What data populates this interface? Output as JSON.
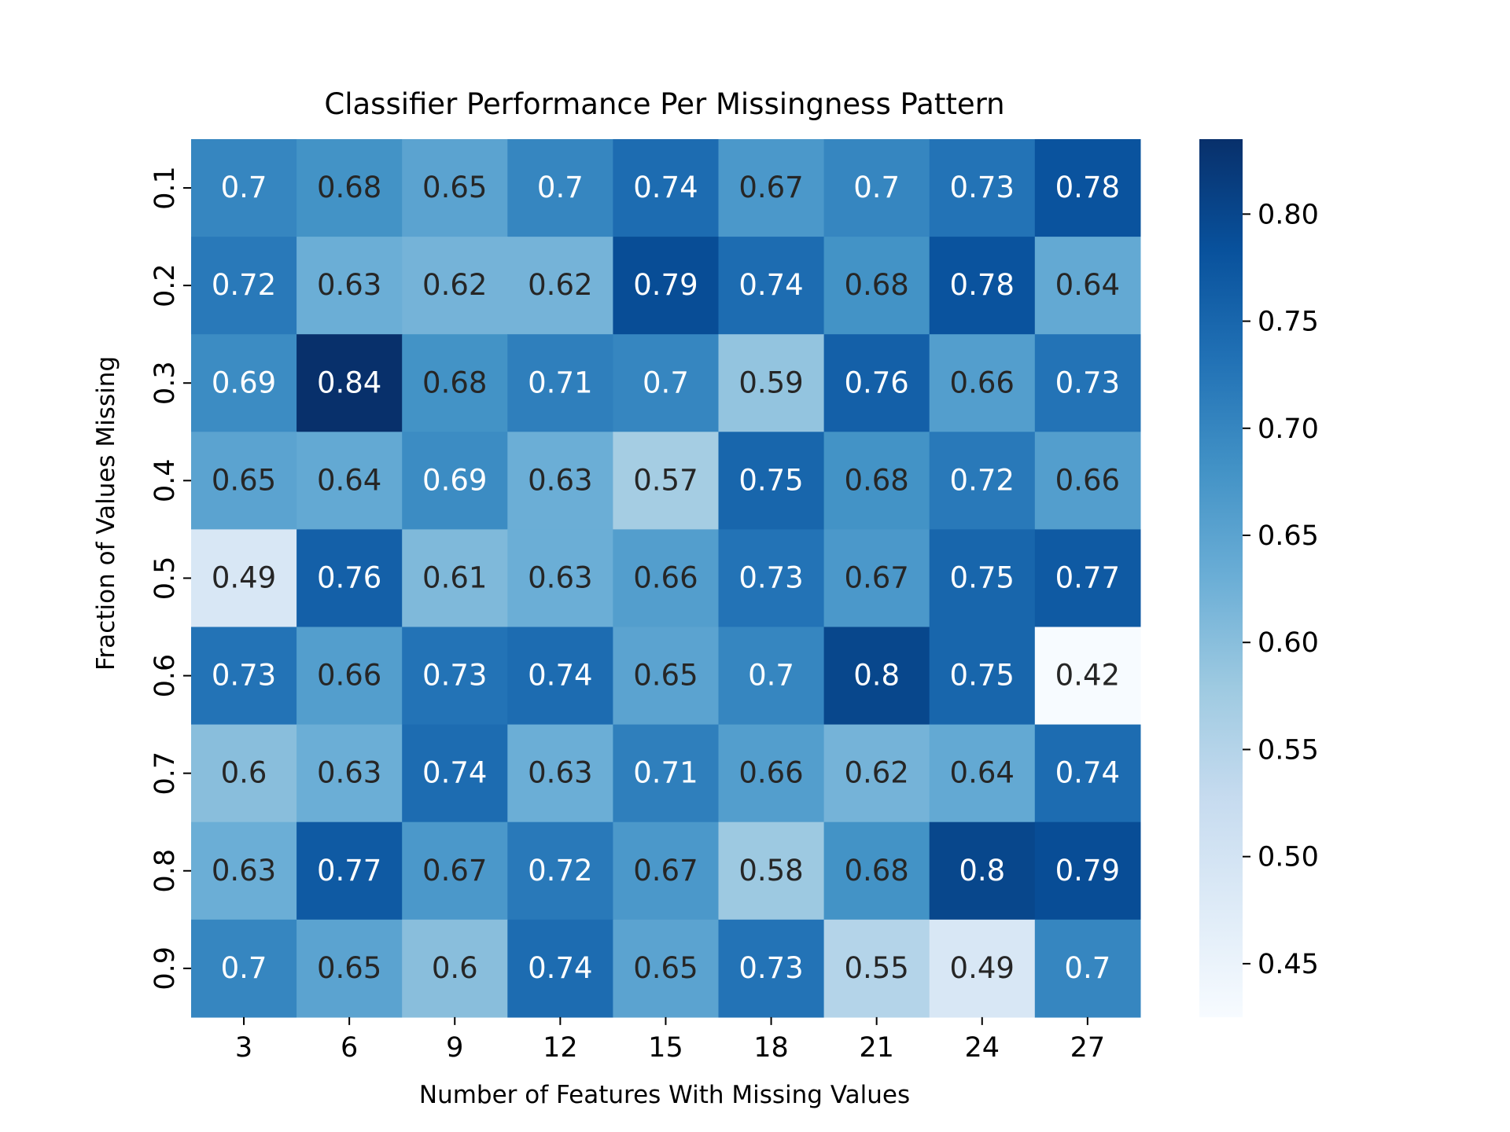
{
  "chart_data": {
    "type": "heatmap",
    "title": "Classifier Performance Per Missingness Pattern",
    "xlabel": "Number of Features With Missing Values",
    "ylabel": "Fraction of Values Missing",
    "x_categories": [
      "3",
      "6",
      "9",
      "12",
      "15",
      "18",
      "21",
      "24",
      "27"
    ],
    "y_categories": [
      "0.1",
      "0.2",
      "0.3",
      "0.4",
      "0.5",
      "0.6",
      "0.7",
      "0.8",
      "0.9"
    ],
    "values": [
      [
        0.7,
        0.68,
        0.65,
        0.7,
        0.74,
        0.67,
        0.7,
        0.73,
        0.78
      ],
      [
        0.72,
        0.63,
        0.62,
        0.62,
        0.79,
        0.74,
        0.68,
        0.78,
        0.64
      ],
      [
        0.69,
        0.84,
        0.68,
        0.71,
        0.7,
        0.59,
        0.76,
        0.66,
        0.73
      ],
      [
        0.65,
        0.64,
        0.69,
        0.63,
        0.57,
        0.75,
        0.68,
        0.72,
        0.66
      ],
      [
        0.49,
        0.76,
        0.61,
        0.63,
        0.66,
        0.73,
        0.67,
        0.75,
        0.77
      ],
      [
        0.73,
        0.66,
        0.73,
        0.74,
        0.65,
        0.7,
        0.8,
        0.75,
        0.42
      ],
      [
        0.6,
        0.63,
        0.74,
        0.63,
        0.71,
        0.66,
        0.62,
        0.64,
        0.74
      ],
      [
        0.63,
        0.77,
        0.67,
        0.72,
        0.67,
        0.58,
        0.68,
        0.8,
        0.79
      ],
      [
        0.7,
        0.65,
        0.6,
        0.74,
        0.65,
        0.73,
        0.55,
        0.49,
        0.7
      ]
    ],
    "annotations": [
      [
        "0.7",
        "0.68",
        "0.65",
        "0.7",
        "0.74",
        "0.67",
        "0.7",
        "0.73",
        "0.78"
      ],
      [
        "0.72",
        "0.63",
        "0.62",
        "0.62",
        "0.79",
        "0.74",
        "0.68",
        "0.78",
        "0.64"
      ],
      [
        "0.69",
        "0.84",
        "0.68",
        "0.71",
        "0.7",
        "0.59",
        "0.76",
        "0.66",
        "0.73"
      ],
      [
        "0.65",
        "0.64",
        "0.69",
        "0.63",
        "0.57",
        "0.75",
        "0.68",
        "0.72",
        "0.66"
      ],
      [
        "0.49",
        "0.76",
        "0.61",
        "0.63",
        "0.66",
        "0.73",
        "0.67",
        "0.75",
        "0.77"
      ],
      [
        "0.73",
        "0.66",
        "0.73",
        "0.74",
        "0.65",
        "0.7",
        "0.8",
        "0.75",
        "0.42"
      ],
      [
        "0.6",
        "0.63",
        "0.74",
        "0.63",
        "0.71",
        "0.66",
        "0.62",
        "0.64",
        "0.74"
      ],
      [
        "0.63",
        "0.77",
        "0.67",
        "0.72",
        "0.67",
        "0.58",
        "0.68",
        "0.8",
        "0.79"
      ],
      [
        "0.7",
        "0.65",
        "0.6",
        "0.74",
        "0.65",
        "0.73",
        "0.55",
        "0.49",
        "0.7"
      ]
    ],
    "colormap": "Blues",
    "colorbar": {
      "range": [
        0.425,
        0.835
      ],
      "ticks": [
        0.45,
        0.5,
        0.55,
        0.6,
        0.65,
        0.7,
        0.75,
        0.8
      ],
      "tick_labels": [
        "0.45",
        "0.50",
        "0.55",
        "0.60",
        "0.65",
        "0.70",
        "0.75",
        "0.80"
      ]
    },
    "colors": {
      "text_dark": "#262626",
      "text_light": "#ffffff",
      "axis": "#000000"
    },
    "grid": false
  }
}
